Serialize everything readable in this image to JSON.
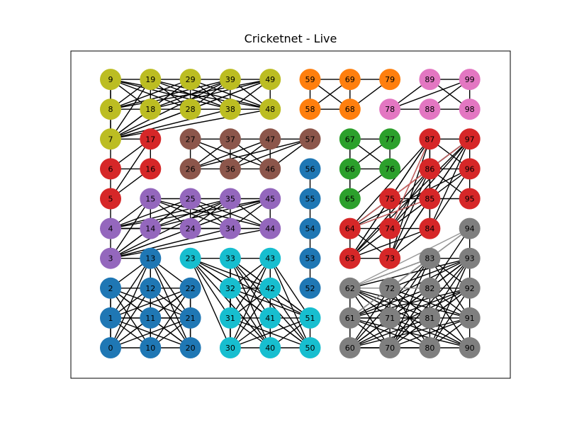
{
  "title": "Cricketnet - Live",
  "colors": {
    "c9": "#bcbd22",
    "c59": "#ff7f0e",
    "c89": "#e377c2",
    "c17": "#d62728",
    "c27": "#8c564b",
    "c67": "#2ca02c",
    "c87": "#d62728",
    "c56": "#1f77b4",
    "c15": "#9467bd",
    "c94": "#7f7f7f",
    "c13": "#1f77b4",
    "c23": "#17becf",
    "c63": "#d62728",
    "c62": "#7f7f7f",
    "edge": "#000000",
    "edge_red": "#e06666",
    "edge_gray": "#999999",
    "frame": "#000000"
  },
  "nodes": [
    {
      "id": "9",
      "group": "c9"
    },
    {
      "id": "19",
      "group": "c9"
    },
    {
      "id": "29",
      "group": "c9"
    },
    {
      "id": "39",
      "group": "c9"
    },
    {
      "id": "49",
      "group": "c9"
    },
    {
      "id": "59",
      "group": "c59"
    },
    {
      "id": "69",
      "group": "c59"
    },
    {
      "id": "79",
      "group": "c59"
    },
    {
      "id": "89",
      "group": "c89"
    },
    {
      "id": "99",
      "group": "c89"
    },
    {
      "id": "8",
      "group": "c9"
    },
    {
      "id": "18",
      "group": "c9"
    },
    {
      "id": "28",
      "group": "c9"
    },
    {
      "id": "38",
      "group": "c9"
    },
    {
      "id": "48",
      "group": "c9"
    },
    {
      "id": "58",
      "group": "c59"
    },
    {
      "id": "68",
      "group": "c59"
    },
    {
      "id": "78",
      "group": "c89"
    },
    {
      "id": "88",
      "group": "c89"
    },
    {
      "id": "98",
      "group": "c89"
    },
    {
      "id": "7",
      "group": "c9"
    },
    {
      "id": "17",
      "group": "c17"
    },
    {
      "id": "27",
      "group": "c27"
    },
    {
      "id": "37",
      "group": "c27"
    },
    {
      "id": "47",
      "group": "c27"
    },
    {
      "id": "57",
      "group": "c27"
    },
    {
      "id": "67",
      "group": "c67"
    },
    {
      "id": "77",
      "group": "c67"
    },
    {
      "id": "87",
      "group": "c87"
    },
    {
      "id": "97",
      "group": "c87"
    },
    {
      "id": "6",
      "group": "c17"
    },
    {
      "id": "16",
      "group": "c17"
    },
    {
      "id": "26",
      "group": "c27"
    },
    {
      "id": "36",
      "group": "c27"
    },
    {
      "id": "46",
      "group": "c27"
    },
    {
      "id": "56",
      "group": "c56"
    },
    {
      "id": "66",
      "group": "c67"
    },
    {
      "id": "76",
      "group": "c67"
    },
    {
      "id": "86",
      "group": "c87"
    },
    {
      "id": "96",
      "group": "c87"
    },
    {
      "id": "5",
      "group": "c17"
    },
    {
      "id": "15",
      "group": "c15"
    },
    {
      "id": "25",
      "group": "c15"
    },
    {
      "id": "35",
      "group": "c15"
    },
    {
      "id": "45",
      "group": "c15"
    },
    {
      "id": "55",
      "group": "c56"
    },
    {
      "id": "65",
      "group": "c67"
    },
    {
      "id": "75",
      "group": "c87"
    },
    {
      "id": "85",
      "group": "c87"
    },
    {
      "id": "95",
      "group": "c87"
    },
    {
      "id": "4",
      "group": "c15"
    },
    {
      "id": "14",
      "group": "c15"
    },
    {
      "id": "24",
      "group": "c15"
    },
    {
      "id": "34",
      "group": "c15"
    },
    {
      "id": "44",
      "group": "c15"
    },
    {
      "id": "54",
      "group": "c56"
    },
    {
      "id": "64",
      "group": "c87"
    },
    {
      "id": "74",
      "group": "c87"
    },
    {
      "id": "84",
      "group": "c87"
    },
    {
      "id": "94",
      "group": "c94"
    },
    {
      "id": "3",
      "group": "c15"
    },
    {
      "id": "13",
      "group": "c13"
    },
    {
      "id": "23",
      "group": "c23"
    },
    {
      "id": "33",
      "group": "c23"
    },
    {
      "id": "43",
      "group": "c23"
    },
    {
      "id": "53",
      "group": "c56"
    },
    {
      "id": "63",
      "group": "c63"
    },
    {
      "id": "73",
      "group": "c63"
    },
    {
      "id": "83",
      "group": "c94"
    },
    {
      "id": "93",
      "group": "c94"
    },
    {
      "id": "2",
      "group": "c13"
    },
    {
      "id": "12",
      "group": "c13"
    },
    {
      "id": "22",
      "group": "c13"
    },
    {
      "id": "32",
      "group": "c23"
    },
    {
      "id": "42",
      "group": "c23"
    },
    {
      "id": "52",
      "group": "c56"
    },
    {
      "id": "62",
      "group": "c62"
    },
    {
      "id": "72",
      "group": "c62"
    },
    {
      "id": "82",
      "group": "c62"
    },
    {
      "id": "92",
      "group": "c62"
    },
    {
      "id": "1",
      "group": "c13"
    },
    {
      "id": "11",
      "group": "c13"
    },
    {
      "id": "21",
      "group": "c13"
    },
    {
      "id": "31",
      "group": "c23"
    },
    {
      "id": "41",
      "group": "c23"
    },
    {
      "id": "51",
      "group": "c23"
    },
    {
      "id": "61",
      "group": "c62"
    },
    {
      "id": "71",
      "group": "c62"
    },
    {
      "id": "81",
      "group": "c62"
    },
    {
      "id": "91",
      "group": "c62"
    },
    {
      "id": "0",
      "group": "c13"
    },
    {
      "id": "10",
      "group": "c13"
    },
    {
      "id": "20",
      "group": "c13"
    },
    {
      "id": "30",
      "group": "c23"
    },
    {
      "id": "40",
      "group": "c23"
    },
    {
      "id": "50",
      "group": "c23"
    },
    {
      "id": "60",
      "group": "c62"
    },
    {
      "id": "70",
      "group": "c62"
    },
    {
      "id": "80",
      "group": "c62"
    },
    {
      "id": "90",
      "group": "c62"
    }
  ],
  "edges": [
    [
      "9",
      "19"
    ],
    [
      "19",
      "29"
    ],
    [
      "29",
      "39"
    ],
    [
      "39",
      "49"
    ],
    [
      "9",
      "8"
    ],
    [
      "19",
      "18"
    ],
    [
      "29",
      "28"
    ],
    [
      "39",
      "38"
    ],
    [
      "49",
      "48"
    ],
    [
      "8",
      "18"
    ],
    [
      "18",
      "28"
    ],
    [
      "28",
      "38"
    ],
    [
      "38",
      "48"
    ],
    [
      "9",
      "18"
    ],
    [
      "9",
      "28"
    ],
    [
      "9",
      "38"
    ],
    [
      "9",
      "48"
    ],
    [
      "19",
      "8"
    ],
    [
      "19",
      "28"
    ],
    [
      "19",
      "38"
    ],
    [
      "19",
      "48"
    ],
    [
      "29",
      "8"
    ],
    [
      "29",
      "18"
    ],
    [
      "29",
      "38"
    ],
    [
      "29",
      "48"
    ],
    [
      "39",
      "8"
    ],
    [
      "39",
      "18"
    ],
    [
      "39",
      "28"
    ],
    [
      "39",
      "48"
    ],
    [
      "49",
      "8"
    ],
    [
      "49",
      "18"
    ],
    [
      "49",
      "28"
    ],
    [
      "49",
      "38"
    ],
    [
      "8",
      "7"
    ],
    [
      "7",
      "18"
    ],
    [
      "7",
      "28"
    ],
    [
      "7",
      "38"
    ],
    [
      "7",
      "48"
    ],
    [
      "7",
      "19"
    ],
    [
      "7",
      "29"
    ],
    [
      "7",
      "39"
    ],
    [
      "7",
      "49"
    ],
    [
      "7",
      "9"
    ],
    [
      "59",
      "69"
    ],
    [
      "69",
      "79"
    ],
    [
      "59",
      "58"
    ],
    [
      "69",
      "68"
    ],
    [
      "58",
      "68"
    ],
    [
      "59",
      "68"
    ],
    [
      "69",
      "58"
    ],
    [
      "79",
      "68"
    ],
    [
      "89",
      "99"
    ],
    [
      "89",
      "78"
    ],
    [
      "89",
      "98"
    ],
    [
      "78",
      "88"
    ],
    [
      "88",
      "98"
    ],
    [
      "99",
      "88"
    ],
    [
      "99",
      "98"
    ],
    [
      "99",
      "78"
    ],
    [
      "17",
      "16"
    ],
    [
      "17",
      "6"
    ],
    [
      "17",
      "5"
    ],
    [
      "17",
      "7"
    ],
    [
      "6",
      "16"
    ],
    [
      "6",
      "5"
    ],
    [
      "16",
      "5"
    ],
    [
      "7",
      "6"
    ],
    [
      "27",
      "37"
    ],
    [
      "37",
      "47"
    ],
    [
      "47",
      "57"
    ],
    [
      "27",
      "26"
    ],
    [
      "37",
      "36"
    ],
    [
      "47",
      "46"
    ],
    [
      "26",
      "36"
    ],
    [
      "36",
      "46"
    ],
    [
      "27",
      "36"
    ],
    [
      "27",
      "46"
    ],
    [
      "37",
      "26"
    ],
    [
      "37",
      "46"
    ],
    [
      "47",
      "26"
    ],
    [
      "47",
      "36"
    ],
    [
      "57",
      "26"
    ],
    [
      "57",
      "36"
    ],
    [
      "57",
      "46"
    ],
    [
      "67",
      "77"
    ],
    [
      "67",
      "66"
    ],
    [
      "77",
      "76"
    ],
    [
      "66",
      "76"
    ],
    [
      "67",
      "76"
    ],
    [
      "77",
      "66"
    ],
    [
      "66",
      "65"
    ],
    [
      "76",
      "65"
    ],
    [
      "67",
      "65"
    ],
    [
      "87",
      "97"
    ],
    [
      "87",
      "86"
    ],
    [
      "97",
      "96"
    ],
    [
      "86",
      "96"
    ],
    [
      "86",
      "85"
    ],
    [
      "96",
      "95"
    ],
    [
      "85",
      "95"
    ],
    [
      "75",
      "85"
    ],
    [
      "87",
      "96"
    ],
    [
      "97",
      "86"
    ],
    [
      "87",
      "85"
    ],
    [
      "97",
      "85"
    ],
    [
      "97",
      "75"
    ],
    [
      "97",
      "74"
    ],
    [
      "97",
      "84"
    ],
    [
      "86",
      "95"
    ],
    [
      "96",
      "85"
    ],
    [
      "96",
      "84"
    ],
    [
      "87",
      "75"
    ],
    [
      "87",
      "74"
    ],
    [
      "86",
      "74"
    ],
    [
      "86",
      "84"
    ],
    [
      "85",
      "84"
    ],
    [
      "85",
      "74"
    ],
    [
      "75",
      "74"
    ],
    [
      "75",
      "64"
    ],
    [
      "64",
      "74"
    ],
    [
      "74",
      "84"
    ],
    [
      "64",
      "85"
    ],
    [
      "64",
      "86"
    ],
    [
      "64",
      "87"
    ],
    [
      "64",
      "97"
    ],
    [
      "64",
      "96"
    ],
    [
      "64",
      "63"
    ],
    [
      "64",
      "73"
    ],
    [
      "74",
      "73"
    ],
    [
      "74",
      "63"
    ],
    [
      "75",
      "73"
    ],
    [
      "75",
      "63"
    ],
    [
      "63",
      "73"
    ],
    [
      "73",
      "84"
    ],
    [
      "73",
      "85"
    ],
    [
      "73",
      "86"
    ],
    [
      "73",
      "87"
    ],
    [
      "73",
      "97"
    ],
    [
      "63",
      "84"
    ],
    [
      "63",
      "85"
    ],
    [
      "63",
      "86"
    ],
    [
      "63",
      "87"
    ],
    [
      "63",
      "97"
    ],
    [
      "56",
      "55"
    ],
    [
      "55",
      "54"
    ],
    [
      "54",
      "53"
    ],
    [
      "53",
      "52"
    ],
    [
      "15",
      "25"
    ],
    [
      "25",
      "35"
    ],
    [
      "35",
      "45"
    ],
    [
      "15",
      "14"
    ],
    [
      "25",
      "24"
    ],
    [
      "35",
      "34"
    ],
    [
      "45",
      "44"
    ],
    [
      "4",
      "14"
    ],
    [
      "14",
      "24"
    ],
    [
      "24",
      "34"
    ],
    [
      "34",
      "44"
    ],
    [
      "15",
      "24"
    ],
    [
      "15",
      "34"
    ],
    [
      "15",
      "44"
    ],
    [
      "25",
      "14"
    ],
    [
      "25",
      "34"
    ],
    [
      "25",
      "44"
    ],
    [
      "35",
      "14"
    ],
    [
      "35",
      "24"
    ],
    [
      "35",
      "44"
    ],
    [
      "45",
      "14"
    ],
    [
      "45",
      "24"
    ],
    [
      "45",
      "34"
    ],
    [
      "4",
      "15"
    ],
    [
      "4",
      "25"
    ],
    [
      "4",
      "35"
    ],
    [
      "4",
      "45"
    ],
    [
      "4",
      "24"
    ],
    [
      "4",
      "34"
    ],
    [
      "4",
      "44"
    ],
    [
      "3",
      "4"
    ],
    [
      "3",
      "14"
    ],
    [
      "3",
      "15"
    ],
    [
      "3",
      "25"
    ],
    [
      "3",
      "35"
    ],
    [
      "3",
      "45"
    ],
    [
      "3",
      "24"
    ],
    [
      "3",
      "34"
    ],
    [
      "3",
      "44"
    ],
    [
      "3",
      "13"
    ],
    [
      "5",
      "4"
    ],
    [
      "13",
      "12"
    ],
    [
      "13",
      "2"
    ],
    [
      "13",
      "22"
    ],
    [
      "13",
      "1"
    ],
    [
      "13",
      "11"
    ],
    [
      "13",
      "21"
    ],
    [
      "13",
      "0"
    ],
    [
      "13",
      "10"
    ],
    [
      "13",
      "20"
    ],
    [
      "2",
      "12"
    ],
    [
      "12",
      "22"
    ],
    [
      "2",
      "1"
    ],
    [
      "12",
      "11"
    ],
    [
      "22",
      "21"
    ],
    [
      "1",
      "11"
    ],
    [
      "11",
      "21"
    ],
    [
      "1",
      "0"
    ],
    [
      "11",
      "10"
    ],
    [
      "21",
      "20"
    ],
    [
      "0",
      "10"
    ],
    [
      "10",
      "20"
    ],
    [
      "2",
      "11"
    ],
    [
      "2",
      "21"
    ],
    [
      "2",
      "10"
    ],
    [
      "2",
      "20"
    ],
    [
      "2",
      "0"
    ],
    [
      "12",
      "1"
    ],
    [
      "12",
      "21"
    ],
    [
      "12",
      "0"
    ],
    [
      "12",
      "10"
    ],
    [
      "12",
      "20"
    ],
    [
      "22",
      "1"
    ],
    [
      "22",
      "11"
    ],
    [
      "22",
      "0"
    ],
    [
      "22",
      "10"
    ],
    [
      "22",
      "20"
    ],
    [
      "1",
      "10"
    ],
    [
      "1",
      "20"
    ],
    [
      "1",
      "21"
    ],
    [
      "11",
      "0"
    ],
    [
      "11",
      "20"
    ],
    [
      "21",
      "0"
    ],
    [
      "21",
      "10"
    ],
    [
      "11",
      "22"
    ],
    [
      "23",
      "33"
    ],
    [
      "33",
      "43"
    ],
    [
      "33",
      "32"
    ],
    [
      "43",
      "42"
    ],
    [
      "32",
      "42"
    ],
    [
      "32",
      "31"
    ],
    [
      "42",
      "41"
    ],
    [
      "31",
      "41"
    ],
    [
      "41",
      "51"
    ],
    [
      "31",
      "30"
    ],
    [
      "41",
      "40"
    ],
    [
      "51",
      "50"
    ],
    [
      "30",
      "40"
    ],
    [
      "40",
      "50"
    ],
    [
      "23",
      "32"
    ],
    [
      "23",
      "42"
    ],
    [
      "23",
      "31"
    ],
    [
      "23",
      "41"
    ],
    [
      "23",
      "51"
    ],
    [
      "23",
      "30"
    ],
    [
      "23",
      "40"
    ],
    [
      "23",
      "50"
    ],
    [
      "33",
      "42"
    ],
    [
      "33",
      "31"
    ],
    [
      "33",
      "41"
    ],
    [
      "33",
      "51"
    ],
    [
      "33",
      "30"
    ],
    [
      "33",
      "40"
    ],
    [
      "33",
      "50"
    ],
    [
      "43",
      "32"
    ],
    [
      "43",
      "31"
    ],
    [
      "43",
      "41"
    ],
    [
      "43",
      "51"
    ],
    [
      "43",
      "30"
    ],
    [
      "43",
      "40"
    ],
    [
      "43",
      "50"
    ],
    [
      "32",
      "41"
    ],
    [
      "32",
      "51"
    ],
    [
      "32",
      "30"
    ],
    [
      "32",
      "40"
    ],
    [
      "32",
      "50"
    ],
    [
      "42",
      "31"
    ],
    [
      "42",
      "51"
    ],
    [
      "42",
      "30"
    ],
    [
      "42",
      "40"
    ],
    [
      "42",
      "50"
    ],
    [
      "31",
      "40"
    ],
    [
      "31",
      "50"
    ],
    [
      "41",
      "30"
    ],
    [
      "41",
      "50"
    ],
    [
      "51",
      "30"
    ],
    [
      "51",
      "40"
    ],
    [
      "94",
      "93"
    ],
    [
      "93",
      "92"
    ],
    [
      "92",
      "91"
    ],
    [
      "91",
      "90"
    ],
    [
      "83",
      "93"
    ],
    [
      "83",
      "82"
    ],
    [
      "82",
      "81"
    ],
    [
      "81",
      "80"
    ],
    [
      "83",
      "92"
    ],
    [
      "83",
      "91"
    ],
    [
      "83",
      "72"
    ],
    [
      "83",
      "71"
    ],
    [
      "83",
      "70"
    ],
    [
      "83",
      "62"
    ],
    [
      "83",
      "61"
    ],
    [
      "83",
      "60"
    ],
    [
      "93",
      "82"
    ],
    [
      "93",
      "81"
    ],
    [
      "93",
      "80"
    ],
    [
      "93",
      "72"
    ],
    [
      "93",
      "71"
    ],
    [
      "93",
      "70"
    ],
    [
      "93",
      "62"
    ],
    [
      "93",
      "61"
    ],
    [
      "93",
      "60"
    ],
    [
      "94",
      "72"
    ],
    [
      "94",
      "70"
    ],
    [
      "62",
      "72"
    ],
    [
      "72",
      "82"
    ],
    [
      "82",
      "92"
    ],
    [
      "62",
      "61"
    ],
    [
      "72",
      "71"
    ],
    [
      "61",
      "71"
    ],
    [
      "71",
      "81"
    ],
    [
      "81",
      "91"
    ],
    [
      "61",
      "60"
    ],
    [
      "71",
      "70"
    ],
    [
      "60",
      "70"
    ],
    [
      "70",
      "80"
    ],
    [
      "80",
      "90"
    ],
    [
      "62",
      "71"
    ],
    [
      "62",
      "70"
    ],
    [
      "62",
      "81"
    ],
    [
      "62",
      "80"
    ],
    [
      "62",
      "91"
    ],
    [
      "62",
      "90"
    ],
    [
      "72",
      "61"
    ],
    [
      "72",
      "81"
    ],
    [
      "72",
      "80"
    ],
    [
      "72",
      "60"
    ],
    [
      "72",
      "91"
    ],
    [
      "72",
      "90"
    ],
    [
      "82",
      "71"
    ],
    [
      "82",
      "61"
    ],
    [
      "82",
      "60"
    ],
    [
      "82",
      "70"
    ],
    [
      "82",
      "91"
    ],
    [
      "82",
      "90"
    ],
    [
      "92",
      "81"
    ],
    [
      "92",
      "80"
    ],
    [
      "92",
      "71"
    ],
    [
      "92",
      "70"
    ],
    [
      "92",
      "61"
    ],
    [
      "92",
      "60"
    ],
    [
      "61",
      "70"
    ],
    [
      "61",
      "80"
    ],
    [
      "61",
      "81"
    ],
    [
      "71",
      "60"
    ],
    [
      "71",
      "80"
    ],
    [
      "71",
      "90"
    ],
    [
      "81",
      "60"
    ],
    [
      "81",
      "70"
    ],
    [
      "81",
      "90"
    ],
    [
      "91",
      "80"
    ],
    [
      "91",
      "70"
    ],
    [
      "91",
      "60"
    ],
    [
      "60",
      "80"
    ],
    [
      "61",
      "90"
    ]
  ],
  "red_edges": [
    [
      "64",
      "86"
    ],
    [
      "74",
      "87"
    ],
    [
      "75",
      "97"
    ],
    [
      "64",
      "85"
    ]
  ],
  "gray_edges": [
    [
      "62",
      "94"
    ],
    [
      "62",
      "82"
    ],
    [
      "62",
      "83"
    ],
    [
      "61",
      "94"
    ]
  ]
}
